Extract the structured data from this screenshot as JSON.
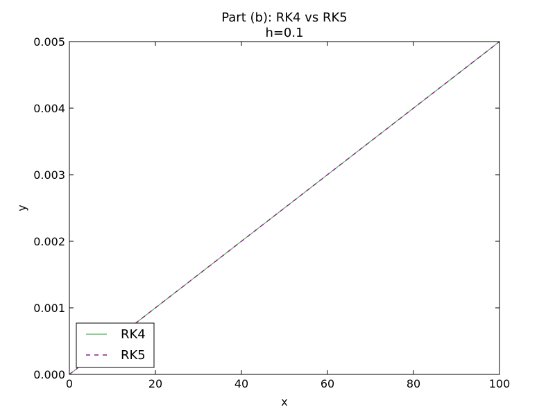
{
  "chart_data": {
    "type": "line",
    "title": "Part (b): RK4 vs RK5",
    "subtitle": "h=0.1",
    "xlabel": "x",
    "ylabel": "y",
    "xlim": [
      0,
      100
    ],
    "ylim": [
      0,
      0.005
    ],
    "x_ticks": [
      0,
      20,
      40,
      60,
      80,
      100
    ],
    "x_tick_labels": [
      "0",
      "20",
      "40",
      "60",
      "80",
      "100"
    ],
    "y_ticks": [
      0,
      0.001,
      0.002,
      0.003,
      0.004,
      0.005
    ],
    "y_tick_labels": [
      "0.000",
      "0.001",
      "0.002",
      "0.003",
      "0.004",
      "0.005"
    ],
    "grid": false,
    "legend_position": "lower-left",
    "series": [
      {
        "name": "RK4",
        "color": "#4caf50",
        "style": "solid",
        "x": [
          0,
          100
        ],
        "y": [
          0,
          0.005
        ]
      },
      {
        "name": "RK5",
        "color": "#8b1a8b",
        "style": "dashed",
        "x": [
          0,
          100
        ],
        "y": [
          0,
          0.005
        ]
      }
    ]
  }
}
